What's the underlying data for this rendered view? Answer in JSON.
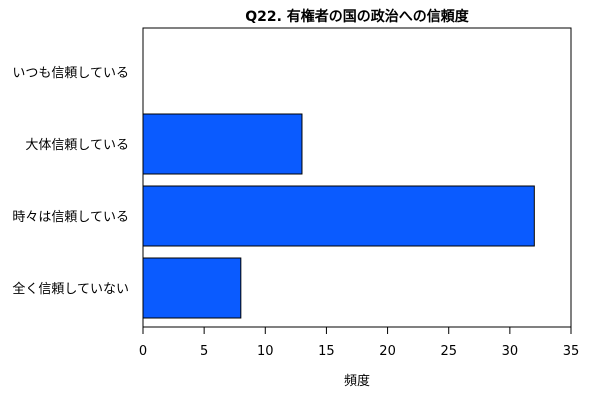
{
  "chart_data": {
    "type": "bar",
    "orientation": "horizontal",
    "title": "Q22. 有権者の国の政治への信頼度",
    "xlabel": "頻度",
    "ylabel": "",
    "categories": [
      "いつも信頼している",
      "大体信頼している",
      "時々は信頼している",
      "全く信頼していない"
    ],
    "values": [
      0,
      13,
      32,
      8
    ],
    "xlim": [
      0,
      35
    ],
    "xticks": [
      "0",
      "5",
      "10",
      "15",
      "20",
      "25",
      "30",
      "35"
    ],
    "bar_color": "#0A5BFF",
    "grid": false,
    "legend": "none"
  }
}
